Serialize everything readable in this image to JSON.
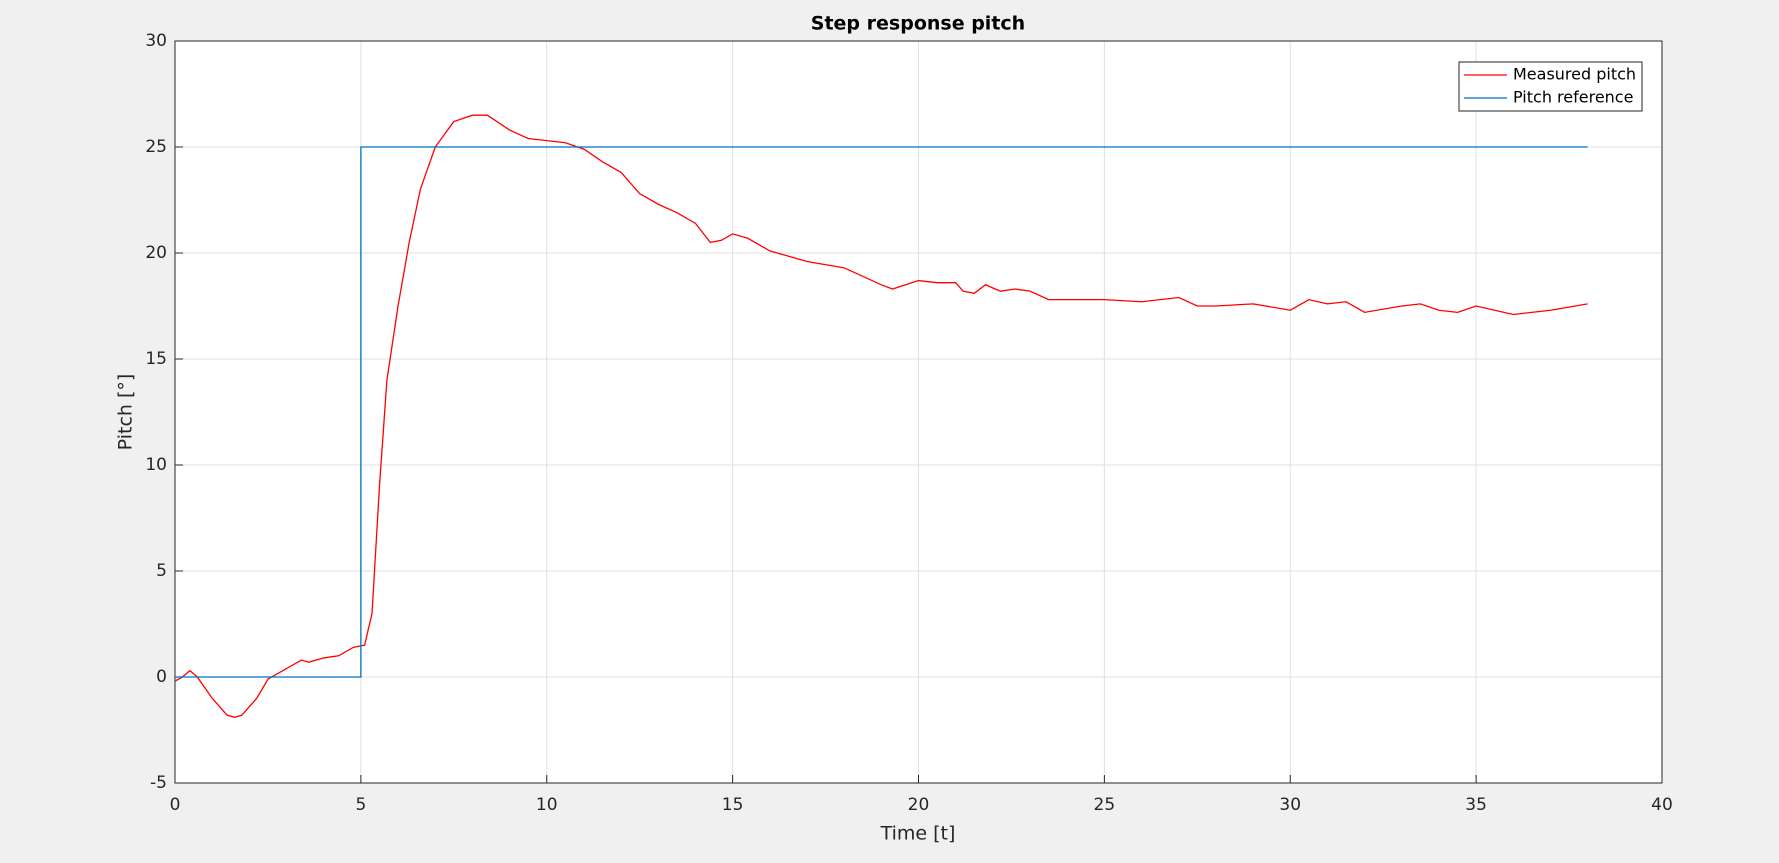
{
  "chart_data": {
    "type": "line",
    "title": "Step response pitch",
    "x_label": "Time [t]",
    "y_label": "Pitch [°]",
    "xlim": [
      0,
      40
    ],
    "xticks": [
      0,
      5,
      10,
      15,
      20,
      25,
      30,
      35,
      40
    ],
    "ylim": [
      -5,
      30
    ],
    "yticks": [
      -5,
      0,
      5,
      10,
      15,
      20,
      25,
      30
    ],
    "grid": true,
    "legend": "northeast",
    "series": [
      {
        "name": "Measured pitch",
        "color": "#ff0000",
        "x": [
          0,
          0.2,
          0.4,
          0.6,
          1,
          1.4,
          1.6,
          1.8,
          2.2,
          2.5,
          3,
          3.4,
          3.6,
          4,
          4.4,
          4.8,
          5.1,
          5.3,
          5.5,
          5.7,
          6,
          6.3,
          6.6,
          7,
          7.5,
          8,
          8.4,
          9,
          9.5,
          10,
          10.5,
          11,
          11.5,
          12,
          12.5,
          13,
          13.5,
          14,
          14.4,
          14.7,
          15,
          15.4,
          16,
          17,
          18,
          19,
          19.3,
          20,
          20.5,
          21,
          21.2,
          21.5,
          21.8,
          22.2,
          22.6,
          23,
          23.5,
          24,
          24.5,
          25,
          26,
          27,
          27.5,
          28,
          29,
          30,
          30.5,
          31,
          31.5,
          32,
          33,
          33.5,
          34,
          34.5,
          35,
          36,
          37,
          38
        ],
        "values": [
          -0.2,
          0,
          0.3,
          0,
          -1,
          -1.8,
          -1.9,
          -1.8,
          -1,
          -0.1,
          0.4,
          0.8,
          0.7,
          0.9,
          1,
          1.4,
          1.5,
          3,
          9,
          14,
          17.5,
          20.5,
          23,
          25,
          26.2,
          26.5,
          26.5,
          25.8,
          25.4,
          25.3,
          25.2,
          24.9,
          24.3,
          23.8,
          22.8,
          22.3,
          21.9,
          21.4,
          20.5,
          20.6,
          20.9,
          20.7,
          20.1,
          19.6,
          19.3,
          18.5,
          18.3,
          18.7,
          18.6,
          18.6,
          18.2,
          18.1,
          18.5,
          18.2,
          18.3,
          18.2,
          17.8,
          17.8,
          17.8,
          17.8,
          17.7,
          17.9,
          17.5,
          17.5,
          17.6,
          17.3,
          17.8,
          17.6,
          17.7,
          17.2,
          17.5,
          17.6,
          17.3,
          17.2,
          17.5,
          17.1,
          17.3,
          17.6
        ]
      },
      {
        "name": "Pitch reference",
        "color": "#0072bd",
        "x": [
          0,
          5,
          5,
          38
        ],
        "values": [
          0,
          0,
          25,
          25
        ]
      }
    ]
  }
}
